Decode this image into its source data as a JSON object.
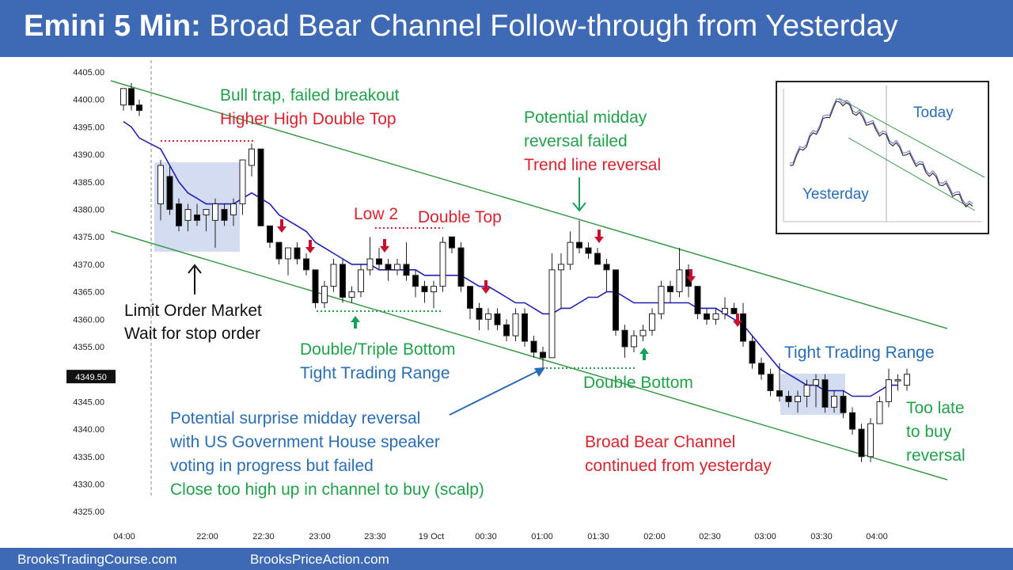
{
  "header": {
    "title_bold": "Emini 5 Min:",
    "title_rest": "Broad Bear Channel Follow-through from Yesterday"
  },
  "footer": {
    "left": "BrooksTradingCourse.com",
    "right": "BrooksPriceAction.com"
  },
  "colors": {
    "header_bg": "#3e6ab5",
    "bull_candle": "#ffffff",
    "bear_candle": "#000000",
    "ema": "#1f1fb4",
    "channel": "#3a9a4a",
    "box": "#c5d0ee",
    "green_text": "#21a24a",
    "red_text": "#d9232e",
    "blue_text": "#2a6db5",
    "arrow_red": "#c8102e",
    "arrow_green": "#16a05a"
  },
  "chart_data": {
    "type": "candlestick",
    "y_ticks": [
      "4405.00",
      "4400.00",
      "4395.00",
      "4390.00",
      "4385.00",
      "4380.00",
      "4375.00",
      "4370.00",
      "4365.00",
      "4360.00",
      "4355.00",
      "4350.00",
      "4345.00",
      "4340.00",
      "4335.00",
      "4330.00",
      "4325.00"
    ],
    "x_ticks": [
      "04:00",
      "22:00",
      "22:30",
      "23:00",
      "23:30",
      "19 Oct",
      "00:30",
      "01:00",
      "01:30",
      "02:00",
      "02:30",
      "03:00",
      "03:30",
      "04:00"
    ],
    "last_price": "4349.50",
    "ylim": [
      4322,
      4407
    ],
    "candles": [
      [
        4399,
        4402,
        4398,
        4402
      ],
      [
        4402,
        4403,
        4398,
        4399
      ],
      [
        4399,
        4400,
        4397,
        4398
      ],
      [
        4381,
        4389,
        4378,
        4388
      ],
      [
        4386,
        4388,
        4379,
        4380
      ],
      [
        4381,
        4382,
        4376,
        4377
      ],
      [
        4378,
        4381,
        4376,
        4380
      ],
      [
        4379,
        4381,
        4377,
        4378
      ],
      [
        4379,
        4380,
        4376,
        4380
      ],
      [
        4378,
        4382,
        4373,
        4381
      ],
      [
        4380,
        4381,
        4377,
        4378
      ],
      [
        4379,
        4382,
        4377,
        4381
      ],
      [
        4381,
        4389,
        4379,
        4389
      ],
      [
        4388,
        4392,
        4386,
        4391
      ],
      [
        4391,
        4391,
        4377,
        4377
      ],
      [
        4377,
        4377,
        4373,
        4374
      ],
      [
        4374,
        4374,
        4370,
        4371
      ],
      [
        4371,
        4373,
        4368,
        4373
      ],
      [
        4373,
        4374,
        4370,
        4371
      ],
      [
        4371,
        4372,
        4368,
        4369
      ],
      [
        4369,
        4369,
        4362,
        4363
      ],
      [
        4363,
        4367,
        4362,
        4366
      ],
      [
        4366,
        4371,
        4365,
        4370
      ],
      [
        4370,
        4371,
        4363,
        4364
      ],
      [
        4364,
        4366,
        4363,
        4365
      ],
      [
        4365,
        4370,
        4364,
        4369
      ],
      [
        4369,
        4375,
        4368,
        4371
      ],
      [
        4371,
        4373,
        4369,
        4370
      ],
      [
        4370,
        4371,
        4367,
        4369
      ],
      [
        4369,
        4371,
        4368,
        4370
      ],
      [
        4370,
        4374,
        4367,
        4368
      ],
      [
        4368,
        4369,
        4364,
        4366
      ],
      [
        4366,
        4367,
        4363,
        4365
      ],
      [
        4365,
        4367,
        4362,
        4366
      ],
      [
        4366,
        4375,
        4365,
        4374
      ],
      [
        4375,
        4375,
        4372,
        4373
      ],
      [
        4373,
        4374,
        4365,
        4366
      ],
      [
        4366,
        4366,
        4360,
        4362
      ],
      [
        4362,
        4363,
        4358,
        4360
      ],
      [
        4360,
        4362,
        4358,
        4361
      ],
      [
        4361,
        4362,
        4358,
        4359
      ],
      [
        4359,
        4360,
        4356,
        4357
      ],
      [
        4357,
        4362,
        4356,
        4361
      ],
      [
        4361,
        4362,
        4355,
        4356
      ],
      [
        4356,
        4357,
        4353,
        4354
      ],
      [
        4354,
        4355,
        4351,
        4353
      ],
      [
        4353,
        4372,
        4353,
        4369
      ],
      [
        4369,
        4372,
        4362,
        4370
      ],
      [
        4370,
        4376,
        4369,
        4374
      ],
      [
        4374,
        4378,
        4372,
        4373
      ],
      [
        4373,
        4374,
        4371,
        4372
      ],
      [
        4372,
        4373,
        4370,
        4370
      ],
      [
        4370,
        4371,
        4365,
        4369
      ],
      [
        4369,
        4369,
        4357,
        4358
      ],
      [
        4358,
        4359,
        4353,
        4355
      ],
      [
        4355,
        4358,
        4354,
        4357
      ],
      [
        4357,
        4359,
        4356,
        4358
      ],
      [
        4358,
        4362,
        4357,
        4361
      ],
      [
        4361,
        4367,
        4360,
        4366
      ],
      [
        4366,
        4367,
        4363,
        4365
      ],
      [
        4365,
        4373,
        4364,
        4369
      ],
      [
        4369,
        4370,
        4364,
        4366
      ],
      [
        4366,
        4366,
        4360,
        4361
      ],
      [
        4361,
        4362,
        4359,
        4360
      ],
      [
        4360,
        4362,
        4359,
        4361
      ],
      [
        4361,
        4364,
        4360,
        4362
      ],
      [
        4362,
        4363,
        4361,
        4361
      ],
      [
        4361,
        4363,
        4355,
        4356
      ],
      [
        4356,
        4357,
        4351,
        4352
      ],
      [
        4352,
        4353,
        4349,
        4350
      ],
      [
        4350,
        4351,
        4346,
        4347
      ],
      [
        4347,
        4352,
        4345,
        4346
      ],
      [
        4346,
        4347,
        4344,
        4345
      ],
      [
        4345,
        4347,
        4343,
        4346
      ],
      [
        4346,
        4349,
        4344,
        4348
      ],
      [
        4348,
        4350,
        4344,
        4349
      ],
      [
        4349,
        4350,
        4343,
        4344
      ],
      [
        4344,
        4347,
        4343,
        4346
      ],
      [
        4346,
        4347,
        4342,
        4343
      ],
      [
        4343,
        4344,
        4339,
        4340
      ],
      [
        4340,
        4341,
        4334,
        4335
      ],
      [
        4335,
        4342,
        4334,
        4341
      ],
      [
        4341,
        4346,
        4341,
        4345
      ],
      [
        4345,
        4351,
        4344,
        4349
      ],
      [
        4349,
        4350,
        4347,
        4349
      ],
      [
        4348,
        4351,
        4347,
        4350
      ]
    ],
    "ema": [
      4396,
      4395,
      4393,
      4391,
      4388,
      4385,
      4383,
      4382,
      4381,
      4381,
      4381,
      4381,
      4382,
      4383,
      4382,
      4381,
      4379,
      4378,
      4377,
      4376,
      4374,
      4373,
      4372,
      4371,
      4370,
      4370,
      4370,
      4369,
      4369,
      4369,
      4369,
      4369,
      4368,
      4368,
      4368,
      4368,
      4368,
      4367,
      4366,
      4366,
      4365,
      4364,
      4363,
      4363,
      4362,
      4361,
      4361,
      4362,
      4362,
      4363,
      4364,
      4364,
      4365,
      4365,
      4364,
      4363,
      4363,
      4363,
      4363,
      4363,
      4363,
      4363,
      4362,
      4362,
      4362,
      4361,
      4360,
      4359,
      4357,
      4355,
      4353,
      4351,
      4350,
      4349,
      4348,
      4348,
      4347,
      4347,
      4347,
      4346,
      4346,
      4346,
      4347,
      4348,
      4348
    ]
  },
  "annotations": {
    "bull_trap_1": "Bull trap, failed breakout",
    "bull_trap_2": "Higher High Double Top",
    "midday_1": "Potential midday",
    "midday_2": "reversal failed",
    "midday_3": "Trend line reversal",
    "low2": "Low 2",
    "double_top": "Double Top",
    "limit_1": "Limit Order Market",
    "limit_2": "Wait for stop order",
    "dbl_bottom_1": "Double/Triple Bottom",
    "dbl_bottom_2": "Tight Trading Range",
    "surprise_1": "Potential surprise midday reversal",
    "surprise_2": "with US Government House speaker",
    "surprise_3": "voting in progress but failed",
    "surprise_4": "Close too high up in channel to buy (scalp)",
    "double_bottom": "Double Bottom",
    "ttr": "Tight Trading Range",
    "too_late_1": "Too late",
    "too_late_2": "to buy",
    "too_late_3": "reversal",
    "broad_1": "Broad Bear Channel",
    "broad_2": "continued from yesterday"
  },
  "inset": {
    "today": "Today",
    "yesterday": "Yesterday"
  }
}
